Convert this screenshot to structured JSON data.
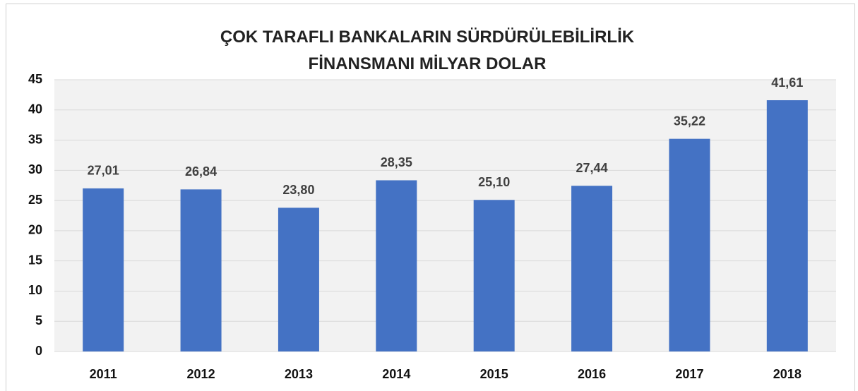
{
  "chart_data": {
    "type": "bar",
    "title": "ÇOK TARAFLI BANKALARIN SÜRDÜRÜLEBİLİRLİK FİNANSMANI MİLYAR DOLAR",
    "categories": [
      "2011",
      "2012",
      "2013",
      "2014",
      "2015",
      "2016",
      "2017",
      "2018"
    ],
    "values": [
      27.01,
      26.84,
      23.8,
      28.35,
      25.1,
      27.44,
      35.22,
      41.61
    ],
    "value_labels": [
      "27,01",
      "26,84",
      "23,80",
      "28,35",
      "25,10",
      "27,44",
      "35,22",
      "41,61"
    ],
    "color": "#4472c4",
    "ylim": [
      0,
      45
    ],
    "yticks": [
      0,
      5,
      10,
      15,
      20,
      25,
      30,
      35,
      40,
      45
    ],
    "grid": true
  }
}
